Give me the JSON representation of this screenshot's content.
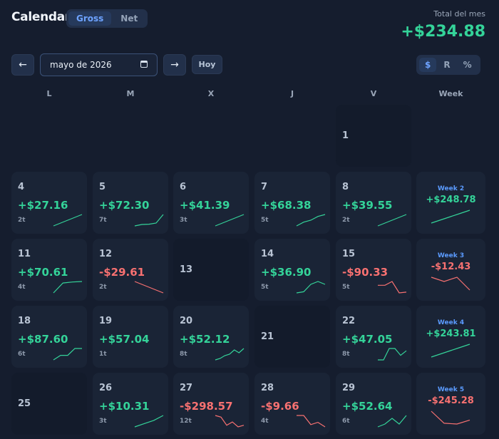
{
  "header": {
    "title": "Calendar",
    "mode_tabs": [
      {
        "label": "Gross",
        "active": true
      },
      {
        "label": "Net",
        "active": false
      }
    ],
    "total_label": "Total del mes",
    "total_value": "+$234.88"
  },
  "toolbar": {
    "prev": "←",
    "next": "→",
    "month": "mayo de 2026",
    "today": "Hoy",
    "units": [
      {
        "label": "$",
        "active": true
      },
      {
        "label": "R",
        "active": false
      },
      {
        "label": "%",
        "active": false
      }
    ]
  },
  "weekdays": [
    "L",
    "M",
    "X",
    "J",
    "V",
    "Week"
  ],
  "colors": {
    "positive": "#34d399",
    "negative": "#f87171",
    "accent": "#5b9bff"
  },
  "rows": [
    {
      "days": [
        null,
        null,
        null,
        null,
        {
          "day": "1",
          "pnl": "",
          "trades": "",
          "empty": true
        }
      ],
      "week": null
    },
    {
      "days": [
        {
          "day": "4",
          "pnl": "+$27.16",
          "trades": "2t",
          "spark": [
            0,
            1
          ]
        },
        {
          "day": "5",
          "pnl": "+$72.30",
          "trades": "7t",
          "spark": [
            0,
            0.5,
            0.6,
            1,
            4
          ]
        },
        {
          "day": "6",
          "pnl": "+$41.39",
          "trades": "3t",
          "spark": [
            0,
            1,
            2
          ]
        },
        {
          "day": "7",
          "pnl": "+$68.38",
          "trades": "5t",
          "spark": [
            0,
            1,
            1.5,
            2.5,
            3
          ]
        },
        {
          "day": "8",
          "pnl": "+$39.55",
          "trades": "2t",
          "spark": [
            0,
            1
          ]
        }
      ],
      "week": {
        "label": "Week 2",
        "pnl": "+$248.78",
        "spark": [
          0,
          1,
          2,
          3,
          4
        ]
      }
    },
    {
      "days": [
        {
          "day": "11",
          "pnl": "+$70.61",
          "trades": "4t",
          "spark": [
            0,
            2,
            2.2,
            2.3
          ]
        },
        {
          "day": "12",
          "pnl": "-$29.61",
          "trades": "2t",
          "spark": [
            0,
            -1
          ]
        },
        {
          "day": "13",
          "pnl": "",
          "trades": "",
          "empty": true
        },
        {
          "day": "14",
          "pnl": "+$36.90",
          "trades": "5t",
          "spark": [
            0,
            0.2,
            1.5,
            2,
            1.5
          ]
        },
        {
          "day": "15",
          "pnl": "-$90.33",
          "trades": "5t",
          "spark": [
            0,
            0,
            1,
            -2,
            -1.8
          ]
        }
      ],
      "week": {
        "label": "Week 3",
        "pnl": "-$12.43",
        "spark": [
          0,
          -1,
          0,
          -3
        ]
      }
    },
    {
      "days": [
        {
          "day": "18",
          "pnl": "+$87.60",
          "trades": "6t",
          "spark": [
            0,
            1,
            1,
            2.5,
            2.5
          ]
        },
        {
          "day": "19",
          "pnl": "+$57.04",
          "trades": "1t",
          "spark": []
        },
        {
          "day": "20",
          "pnl": "+$52.12",
          "trades": "8t",
          "spark": [
            0,
            0.5,
            1.5,
            2,
            3.5,
            2.5,
            4
          ]
        },
        {
          "day": "21",
          "pnl": "",
          "trades": "",
          "empty": true
        },
        {
          "day": "22",
          "pnl": "+$47.05",
          "trades": "8t",
          "spark": [
            0,
            0,
            2.5,
            2.5,
            1,
            2
          ]
        }
      ],
      "week": {
        "label": "Week 4",
        "pnl": "+$243.81",
        "spark": [
          0,
          1,
          2,
          3,
          4
        ]
      }
    },
    {
      "days": [
        {
          "day": "25",
          "pnl": "",
          "trades": "",
          "empty": true
        },
        {
          "day": "26",
          "pnl": "+$10.31",
          "trades": "3t",
          "spark": [
            0,
            1,
            2,
            3.5
          ]
        },
        {
          "day": "27",
          "pnl": "-$298.57",
          "trades": "12t",
          "spark": [
            0,
            -0.5,
            -3,
            -2,
            -3.5,
            -3
          ]
        },
        {
          "day": "28",
          "pnl": "-$9.66",
          "trades": "4t",
          "spark": [
            0,
            0,
            -2,
            -1.5,
            -2.5
          ]
        },
        {
          "day": "29",
          "pnl": "+$52.64",
          "trades": "6t",
          "spark": [
            0,
            0.5,
            1.5,
            0.5,
            2
          ]
        }
      ],
      "week": {
        "label": "Week 5",
        "pnl": "-$245.28",
        "spark": [
          0,
          -3,
          -3.2,
          -2.2
        ]
      }
    }
  ]
}
